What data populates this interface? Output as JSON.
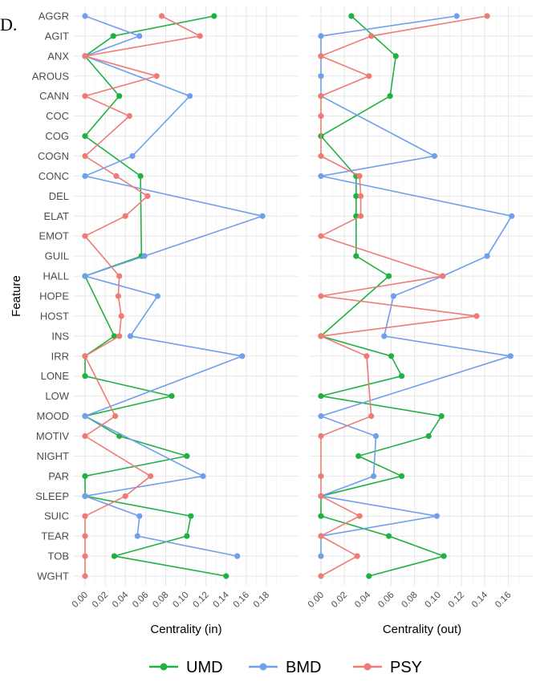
{
  "panel_label": "D.",
  "features": [
    "AGGR",
    "AGIT",
    "ANX",
    "AROUS",
    "CANN",
    "COC",
    "COG",
    "COGN",
    "CONC",
    "DEL",
    "ELAT",
    "EMOT",
    "GUIL",
    "HALL",
    "HOPE",
    "HOST",
    "INS",
    "IRR",
    "LONE",
    "LOW",
    "MOOD",
    "MOTIV",
    "NIGHT",
    "PAR",
    "SLEEP",
    "SUIC",
    "TEAR",
    "TOB",
    "WGHT"
  ],
  "legend": [
    {
      "label": "UMD",
      "color": "#1fb141"
    },
    {
      "label": "BMD",
      "color": "#6f9fed"
    },
    {
      "label": "PSY",
      "color": "#ef7b76"
    }
  ],
  "chart_data": [
    {
      "type": "line",
      "xlabel": "Centrality (in)",
      "ylabel": "Feature",
      "xlim": [
        0,
        0.18
      ],
      "xticks": [
        "0.00",
        "0.02",
        "0.04",
        "0.06",
        "0.08",
        "0.10",
        "0.12",
        "0.14",
        "0.16",
        "0.18"
      ],
      "series": [
        {
          "name": "UMD",
          "color": "#1fb141",
          "values": [
            0.128,
            0.028,
            0.0,
            null,
            0.034,
            null,
            0.0,
            null,
            0.055,
            null,
            null,
            null,
            0.056,
            0.0,
            null,
            null,
            0.029,
            0.0,
            0.0,
            0.086,
            0.0,
            0.034,
            0.101,
            0.0,
            0.0,
            0.105,
            0.101,
            0.029,
            0.14
          ]
        },
        {
          "name": "BMD",
          "color": "#6f9fed",
          "values": [
            0.0,
            0.054,
            0.0,
            null,
            0.104,
            null,
            null,
            0.047,
            0.0,
            null,
            0.176,
            null,
            0.059,
            0.0,
            0.072,
            null,
            0.045,
            0.156,
            null,
            null,
            0.0,
            null,
            null,
            0.117,
            0.0,
            0.054,
            0.052,
            0.151,
            null
          ]
        },
        {
          "name": "PSY",
          "color": "#ef7b76",
          "values": [
            0.076,
            0.114,
            0.0,
            0.071,
            0.0,
            0.044,
            null,
            0.0,
            0.031,
            0.062,
            0.04,
            0.0,
            null,
            0.034,
            0.033,
            0.036,
            0.034,
            0.0,
            null,
            null,
            0.03,
            0.0,
            null,
            0.065,
            0.04,
            0.0,
            0.0,
            0.0,
            0.0
          ]
        }
      ]
    },
    {
      "type": "line",
      "xlabel": "Centrality (out)",
      "ylabel": "Feature",
      "xlim": [
        0,
        0.165
      ],
      "xticks": [
        "0.00",
        "0.02",
        "0.04",
        "0.06",
        "0.08",
        "0.10",
        "0.12",
        "0.14",
        "0.16"
      ],
      "series": [
        {
          "name": "UMD",
          "color": "#1fb141",
          "values": [
            0.026,
            null,
            0.064,
            null,
            0.059,
            null,
            0.0,
            null,
            0.03,
            0.03,
            0.03,
            null,
            0.03,
            0.058,
            null,
            null,
            0.0,
            0.06,
            0.069,
            0.0,
            0.103,
            0.092,
            0.032,
            0.069,
            0.0,
            0.0,
            0.058,
            0.105,
            0.041
          ]
        },
        {
          "name": "BMD",
          "color": "#6f9fed",
          "values": [
            0.116,
            0.0,
            0.0,
            0.0,
            0.0,
            null,
            null,
            0.097,
            0.0,
            null,
            0.163,
            null,
            0.142,
            0.104,
            0.062,
            null,
            0.054,
            0.162,
            null,
            null,
            0.0,
            0.047,
            null,
            0.045,
            0.0,
            0.099,
            0.0,
            0.0,
            null
          ]
        },
        {
          "name": "PSY",
          "color": "#ef7b76",
          "values": [
            0.142,
            0.043,
            0.0,
            0.041,
            0.0,
            0.0,
            null,
            0.0,
            0.033,
            0.034,
            0.034,
            0.0,
            null,
            0.104,
            0.0,
            0.133,
            0.0,
            0.039,
            null,
            null,
            0.043,
            0.0,
            null,
            0.0,
            0.0,
            0.033,
            0.0,
            0.031,
            0.0
          ]
        }
      ]
    }
  ]
}
